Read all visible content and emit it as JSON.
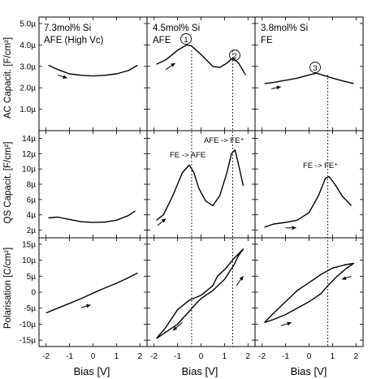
{
  "figure": {
    "y_axis_labels": {
      "ac": "AC Capacit. [F/cm²]",
      "qs": "QS Capacit. [F/cm²]",
      "pol": "Polarisation [C/cm²]"
    },
    "x_axis_label": "Bias [V]",
    "x_ticks": [
      "-2",
      "-1",
      "0",
      "1",
      "2"
    ],
    "y_ticks": {
      "ac": [
        "1.0µ",
        "2.0µ",
        "3.0µ",
        "4.0µ",
        "5.0µ"
      ],
      "qs": [
        "2µ",
        "4µ",
        "6µ",
        "8µ",
        "10µ",
        "12µ",
        "14µ"
      ],
      "pol": [
        "-15µ",
        "-10µ",
        "-5µ",
        "0",
        "5µ",
        "10µ",
        "15µ"
      ]
    },
    "columns": [
      {
        "composition": "7.3mol% Si",
        "phase": "AFE (High Vc)"
      },
      {
        "composition": "4.5mol% Si",
        "phase": "AFE"
      },
      {
        "composition": "3.8mol% Si",
        "phase": "FE"
      }
    ],
    "annotations": {
      "marker_1": "1",
      "marker_2": "2",
      "marker_3": "3",
      "fe_afe": "FE -> AFE",
      "afe_fe_col2": "AFE -> FE⁺",
      "fe_fe_col3": "FE -> FE⁺"
    }
  },
  "chart_data": [
    {
      "type": "line",
      "row": "AC capacitance",
      "column": "7.3mol% Si AFE (High Vc)",
      "ylabel": "AC Capacit. [F/cm²]",
      "xlim": [
        -2.3,
        2.3
      ],
      "ylim": [
        0,
        5.3e-06
      ],
      "x": [
        -1.9,
        -1.5,
        -1.0,
        -0.5,
        0.0,
        0.5,
        1.0,
        1.5,
        1.9
      ],
      "y": [
        3.05e-06,
        2.85e-06,
        2.65e-06,
        2.58e-06,
        2.55e-06,
        2.58e-06,
        2.65e-06,
        2.8e-06,
        3.05e-06
      ]
    },
    {
      "type": "line",
      "row": "AC capacitance",
      "column": "4.5mol% Si AFE",
      "xlim": [
        -2.3,
        2.3
      ],
      "ylim": [
        0,
        5.3e-06
      ],
      "x": [
        -1.9,
        -1.5,
        -1.0,
        -0.6,
        -0.4,
        0.0,
        0.5,
        0.8,
        1.1,
        1.3,
        1.4,
        1.6,
        1.9
      ],
      "y": [
        3.1e-06,
        3.3e-06,
        3.75e-06,
        4e-06,
        3.95e-06,
        3.55e-06,
        3e-06,
        2.95e-06,
        3.15e-06,
        3.35e-06,
        3.35e-06,
        3.15e-06,
        2.6e-06
      ]
    },
    {
      "type": "line",
      "row": "AC capacitance",
      "column": "3.8mol% Si FE",
      "xlim": [
        -2.3,
        2.3
      ],
      "ylim": [
        0,
        5.3e-06
      ],
      "x": [
        -1.9,
        -1.5,
        -1.0,
        -0.5,
        0.0,
        0.3,
        0.5,
        1.0,
        1.5,
        1.9
      ],
      "y": [
        2.2e-06,
        2.25e-06,
        2.35e-06,
        2.45e-06,
        2.6e-06,
        2.68e-06,
        2.62e-06,
        2.45e-06,
        2.3e-06,
        2.2e-06
      ]
    },
    {
      "type": "line",
      "row": "QS capacitance",
      "column": "7.3mol% Si AFE (High Vc)",
      "ylabel": "QS Capacit. [F/cm²]",
      "xlim": [
        -2.3,
        2.3
      ],
      "ylim": [
        1e-06,
        1.5e-05
      ],
      "x": [
        -1.9,
        -1.5,
        -1.0,
        -0.5,
        0.0,
        0.5,
        1.0,
        1.5,
        1.8
      ],
      "y": [
        3.6e-06,
        3.7e-06,
        3.4e-06,
        3.1e-06,
        3e-06,
        3.05e-06,
        3.3e-06,
        3.9e-06,
        4.5e-06
      ]
    },
    {
      "type": "line",
      "row": "QS capacitance",
      "column": "4.5mol% Si AFE",
      "xlim": [
        -2.3,
        2.3
      ],
      "ylim": [
        1e-06,
        1.5e-05
      ],
      "x": [
        -1.9,
        -1.6,
        -1.2,
        -0.8,
        -0.5,
        -0.3,
        -0.1,
        0.2,
        0.5,
        0.8,
        1.1,
        1.3,
        1.45,
        1.6,
        1.8
      ],
      "y": [
        3.3e-06,
        4e-06,
        6.5e-06,
        9.5e-06,
        1.05e-05,
        9.5e-06,
        7.5e-06,
        5.8e-06,
        5.2e-06,
        6.5e-06,
        9.5e-06,
        1.2e-05,
        1.25e-05,
        1.05e-05,
        7.8e-06
      ]
    },
    {
      "type": "line",
      "row": "QS capacitance",
      "column": "3.8mol% Si FE",
      "xlim": [
        -2.3,
        2.3
      ],
      "ylim": [
        1e-06,
        1.5e-05
      ],
      "x": [
        -1.9,
        -1.5,
        -1.0,
        -0.5,
        0.0,
        0.4,
        0.7,
        0.85,
        1.1,
        1.4,
        1.8
      ],
      "y": [
        2.4e-06,
        2.8e-06,
        3e-06,
        3.3e-06,
        4.3e-06,
        6.5e-06,
        8.8e-06,
        9e-06,
        8e-06,
        6.5e-06,
        5.2e-06
      ]
    },
    {
      "type": "line",
      "row": "Polarisation",
      "column": "7.3mol% Si AFE (High Vc)",
      "ylabel": "Polarisation [C/cm²]",
      "xlim": [
        -2.3,
        2.3
      ],
      "ylim": [
        -1.7e-05,
        1.7e-05
      ],
      "x": [
        -2.0,
        -1.5,
        -1.0,
        -0.5,
        0.0,
        0.5,
        1.0,
        1.5,
        1.9
      ],
      "y": [
        -6.5e-06,
        -5e-06,
        -3.5e-06,
        -2e-06,
        -3e-07,
        1.3e-06,
        2.8e-06,
        4.5e-06,
        6e-06
      ]
    },
    {
      "type": "line",
      "row": "Polarisation",
      "column": "4.5mol% Si AFE",
      "xlim": [
        -2.3,
        2.3
      ],
      "ylim": [
        -1.7e-05,
        1.7e-05
      ],
      "x": [
        -1.9,
        -1.5,
        -1.0,
        -0.5,
        -0.2,
        0.0,
        0.5,
        1.0,
        1.4,
        1.6,
        1.8,
        1.8,
        1.4,
        1.0,
        0.7,
        0.5,
        0.0,
        -0.5,
        -1.0,
        -1.5,
        -1.9
      ],
      "y": [
        -1.45e-05,
        -1.25e-05,
        -1e-05,
        -6e-06,
        -3.5e-06,
        -2e-06,
        5e-07,
        4e-06,
        8.5e-06,
        1.15e-05,
        1.35e-05,
        1.35e-05,
        1.05e-05,
        7e-06,
        5e-06,
        2e-06,
        -1e-06,
        -2.5e-06,
        -5.5e-06,
        -1.1e-05,
        -1.45e-05
      ]
    },
    {
      "type": "line",
      "row": "Polarisation",
      "column": "3.8mol% Si FE",
      "xlim": [
        -2.3,
        2.3
      ],
      "ylim": [
        -1.7e-05,
        1.7e-05
      ],
      "x": [
        -1.9,
        -1.5,
        -1.0,
        -0.5,
        0.0,
        0.5,
        0.8,
        1.2,
        1.6,
        1.9,
        1.5,
        1.0,
        0.5,
        0.0,
        -0.5,
        -1.0,
        -1.5,
        -1.9
      ],
      "y": [
        -9.5e-06,
        -8.5e-06,
        -7e-06,
        -5e-06,
        -3e-06,
        -5e-07,
        2e-06,
        5e-06,
        7.5e-06,
        9e-06,
        8.5e-06,
        7.5e-06,
        5.5e-06,
        3e-06,
        5e-07,
        -3e-06,
        -6.5e-06,
        -9.5e-06
      ]
    }
  ]
}
